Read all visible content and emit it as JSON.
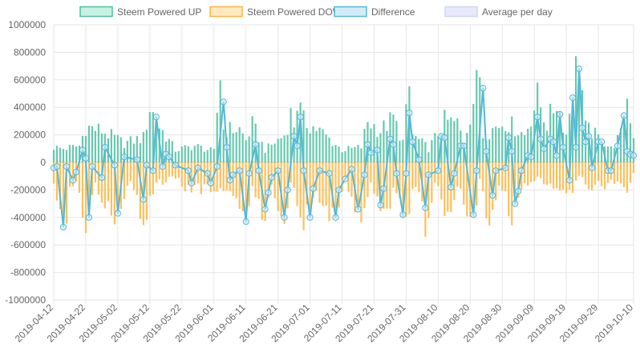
{
  "chart_data": {
    "type": "bar",
    "ylim": [
      -1000000,
      1000000
    ],
    "y_ticks": [
      "1000000",
      "800000",
      "600000",
      "400000",
      "200000",
      "0",
      "-200000",
      "-400000",
      "-600000",
      "-800000",
      "-1000000"
    ],
    "x_range": [
      "2019-04-12",
      "2019-10-10"
    ],
    "x_ticks": [
      "2019-04-12",
      "2019-04-22",
      "2019-05-02",
      "2019-05-12",
      "2019-05-22",
      "2019-06-01",
      "2019-06-11",
      "2019-06-21",
      "2019-07-01",
      "2019-07-11",
      "2019-07-21",
      "2019-07-31",
      "2019-08-10",
      "2019-08-20",
      "2019-08-30",
      "2019-09-09",
      "2019-09-19",
      "2019-09-29",
      "2019-10-10"
    ],
    "grid": true,
    "legend_position": "top",
    "series": [
      {
        "name": "Steem Powered UP",
        "type": "bar",
        "color": "#4bc0a0",
        "fill": "#c9f1e3"
      },
      {
        "name": "Steem Powered DOWN",
        "type": "bar",
        "color": "#ffb43c",
        "fill": "#ffe9c3"
      },
      {
        "name": "Difference",
        "type": "line",
        "color": "#52b8d9",
        "fill": "#d4ebf7"
      },
      {
        "name": "Average per day",
        "type": "line",
        "color": "#c8d0f0",
        "fill": "#e6e9fa"
      }
    ],
    "keypoints_up": [
      [
        "2019-04-12",
        110000
      ],
      [
        "2019-04-15",
        100000
      ],
      [
        "2019-04-20",
        120000
      ],
      [
        "2019-04-22",
        260000
      ],
      [
        "2019-04-27",
        230000
      ],
      [
        "2019-05-04",
        140000
      ],
      [
        "2019-05-10",
        180000
      ],
      [
        "2019-05-12",
        400000
      ],
      [
        "2019-05-15",
        260000
      ],
      [
        "2019-05-20",
        90000
      ],
      [
        "2019-05-26",
        120000
      ],
      [
        "2019-06-01",
        80000
      ],
      [
        "2019-06-03",
        650000
      ],
      [
        "2019-06-04",
        240000
      ],
      [
        "2019-06-09",
        240000
      ],
      [
        "2019-06-11",
        160000
      ],
      [
        "2019-06-13",
        270000
      ],
      [
        "2019-06-17",
        90000
      ],
      [
        "2019-06-23",
        200000
      ],
      [
        "2019-06-25",
        350000
      ],
      [
        "2019-06-26",
        280000
      ],
      [
        "2019-06-27",
        440000
      ],
      [
        "2019-06-29",
        300000
      ],
      [
        "2019-07-04",
        230000
      ],
      [
        "2019-07-11",
        90000
      ],
      [
        "2019-07-17",
        110000
      ],
      [
        "2019-07-19",
        300000
      ],
      [
        "2019-07-23",
        230000
      ],
      [
        "2019-07-27",
        320000
      ],
      [
        "2019-07-30",
        150000
      ],
      [
        "2019-08-01",
        530000
      ],
      [
        "2019-08-02",
        200000
      ],
      [
        "2019-08-07",
        100000
      ],
      [
        "2019-08-11",
        250000
      ],
      [
        "2019-08-12",
        300000
      ],
      [
        "2019-08-16",
        280000
      ],
      [
        "2019-08-18",
        160000
      ],
      [
        "2019-08-23",
        650000
      ],
      [
        "2019-08-24",
        200000
      ],
      [
        "2019-08-31",
        300000
      ],
      [
        "2019-09-06",
        200000
      ],
      [
        "2019-09-10",
        470000
      ],
      [
        "2019-09-13",
        280000
      ],
      [
        "2019-09-16",
        450000
      ],
      [
        "2019-09-19",
        200000
      ],
      [
        "2019-09-21",
        560000
      ],
      [
        "2019-09-23",
        780000
      ],
      [
        "2019-09-25",
        250000
      ],
      [
        "2019-09-28",
        200000
      ],
      [
        "2019-10-03",
        100000
      ],
      [
        "2019-10-06",
        200000
      ],
      [
        "2019-10-08",
        470000
      ],
      [
        "2019-10-10",
        200000
      ]
    ],
    "keypoints_down": [
      [
        "2019-04-12",
        -150000
      ],
      [
        "2019-04-16",
        -460000
      ],
      [
        "2019-04-17",
        -150000
      ],
      [
        "2019-04-20",
        -180000
      ],
      [
        "2019-04-22",
        -480000
      ],
      [
        "2019-04-25",
        -180000
      ],
      [
        "2019-05-02",
        -400000
      ],
      [
        "2019-05-06",
        -150000
      ],
      [
        "2019-05-10",
        -400000
      ],
      [
        "2019-05-14",
        -150000
      ],
      [
        "2019-05-20",
        -120000
      ],
      [
        "2019-05-23",
        -180000
      ],
      [
        "2019-05-26",
        -180000
      ],
      [
        "2019-06-01",
        -200000
      ],
      [
        "2019-06-05",
        -180000
      ],
      [
        "2019-06-11",
        -430000
      ],
      [
        "2019-06-13",
        -150000
      ],
      [
        "2019-06-16",
        -440000
      ],
      [
        "2019-06-19",
        -150000
      ],
      [
        "2019-06-23",
        -440000
      ],
      [
        "2019-06-25",
        -120000
      ],
      [
        "2019-06-29",
        -440000
      ],
      [
        "2019-07-03",
        -220000
      ],
      [
        "2019-07-09",
        -440000
      ],
      [
        "2019-07-12",
        -150000
      ],
      [
        "2019-07-17",
        -390000
      ],
      [
        "2019-07-20",
        -150000
      ],
      [
        "2019-07-25",
        -430000
      ],
      [
        "2019-07-27",
        -150000
      ],
      [
        "2019-07-31",
        -420000
      ],
      [
        "2019-08-03",
        -150000
      ],
      [
        "2019-08-06",
        -440000
      ],
      [
        "2019-08-09",
        -150000
      ],
      [
        "2019-08-13",
        -430000
      ],
      [
        "2019-08-16",
        -150000
      ],
      [
        "2019-08-21",
        -430000
      ],
      [
        "2019-08-23",
        -120000
      ],
      [
        "2019-08-26",
        -430000
      ],
      [
        "2019-08-29",
        -150000
      ],
      [
        "2019-09-02",
        -380000
      ],
      [
        "2019-09-06",
        -150000
      ],
      [
        "2019-09-10",
        -120000
      ],
      [
        "2019-09-15",
        -200000
      ],
      [
        "2019-09-20",
        -250000
      ],
      [
        "2019-09-23",
        -120000
      ],
      [
        "2019-09-28",
        -180000
      ],
      [
        "2019-10-03",
        -150000
      ],
      [
        "2019-10-08",
        -180000
      ],
      [
        "2019-10-10",
        -100000
      ]
    ],
    "keypoints_diff": [
      [
        "2019-04-12",
        -40000
      ],
      [
        "2019-04-13",
        -30000
      ],
      [
        "2019-04-15",
        -470000
      ],
      [
        "2019-04-16",
        -30000
      ],
      [
        "2019-04-18",
        -130000
      ],
      [
        "2019-04-19",
        -70000
      ],
      [
        "2019-04-21",
        90000
      ],
      [
        "2019-04-22",
        30000
      ],
      [
        "2019-04-23",
        -400000
      ],
      [
        "2019-04-24",
        -30000
      ],
      [
        "2019-04-27",
        -110000
      ],
      [
        "2019-04-28",
        110000
      ],
      [
        "2019-05-01",
        -20000
      ],
      [
        "2019-05-02",
        -370000
      ],
      [
        "2019-05-04",
        40000
      ],
      [
        "2019-05-08",
        20000
      ],
      [
        "2019-05-10",
        -270000
      ],
      [
        "2019-05-11",
        -20000
      ],
      [
        "2019-05-13",
        -60000
      ],
      [
        "2019-05-14",
        330000
      ],
      [
        "2019-05-16",
        -30000
      ],
      [
        "2019-05-17",
        60000
      ],
      [
        "2019-05-18",
        40000
      ],
      [
        "2019-05-20",
        -20000
      ],
      [
        "2019-05-24",
        -60000
      ],
      [
        "2019-05-25",
        -150000
      ],
      [
        "2019-05-27",
        -40000
      ],
      [
        "2019-05-30",
        -80000
      ],
      [
        "2019-05-31",
        -150000
      ],
      [
        "2019-06-02",
        -30000
      ],
      [
        "2019-06-04",
        440000
      ],
      [
        "2019-06-05",
        110000
      ],
      [
        "2019-06-06",
        -130000
      ],
      [
        "2019-06-07",
        -90000
      ],
      [
        "2019-06-09",
        -60000
      ],
      [
        "2019-06-11",
        -430000
      ],
      [
        "2019-06-12",
        -80000
      ],
      [
        "2019-06-14",
        130000
      ],
      [
        "2019-06-15",
        -60000
      ],
      [
        "2019-06-17",
        -340000
      ],
      [
        "2019-06-18",
        -220000
      ],
      [
        "2019-06-19",
        -110000
      ],
      [
        "2019-06-21",
        -60000
      ],
      [
        "2019-06-23",
        -400000
      ],
      [
        "2019-06-24",
        -200000
      ],
      [
        "2019-06-26",
        190000
      ],
      [
        "2019-06-27",
        120000
      ],
      [
        "2019-06-28",
        330000
      ],
      [
        "2019-06-29",
        -60000
      ],
      [
        "2019-07-01",
        -400000
      ],
      [
        "2019-07-02",
        -190000
      ],
      [
        "2019-07-04",
        -60000
      ],
      [
        "2019-07-07",
        -80000
      ],
      [
        "2019-07-09",
        -400000
      ],
      [
        "2019-07-10",
        -200000
      ],
      [
        "2019-07-12",
        -120000
      ],
      [
        "2019-07-14",
        -50000
      ],
      [
        "2019-07-16",
        -340000
      ],
      [
        "2019-07-18",
        -90000
      ],
      [
        "2019-07-19",
        130000
      ],
      [
        "2019-07-20",
        70000
      ],
      [
        "2019-07-22",
        90000
      ],
      [
        "2019-07-23",
        -310000
      ],
      [
        "2019-07-24",
        -190000
      ],
      [
        "2019-07-26",
        170000
      ],
      [
        "2019-07-27",
        130000
      ],
      [
        "2019-07-28",
        -80000
      ],
      [
        "2019-07-30",
        -380000
      ],
      [
        "2019-07-31",
        -80000
      ],
      [
        "2019-08-01",
        360000
      ],
      [
        "2019-08-02",
        150000
      ],
      [
        "2019-08-04",
        20000
      ],
      [
        "2019-08-06",
        -330000
      ],
      [
        "2019-08-07",
        -90000
      ],
      [
        "2019-08-10",
        -60000
      ],
      [
        "2019-08-11",
        190000
      ],
      [
        "2019-08-12",
        180000
      ],
      [
        "2019-08-14",
        -180000
      ],
      [
        "2019-08-15",
        -80000
      ],
      [
        "2019-08-17",
        120000
      ],
      [
        "2019-08-18",
        120000
      ],
      [
        "2019-08-21",
        -380000
      ],
      [
        "2019-08-22",
        -60000
      ],
      [
        "2019-08-24",
        540000
      ],
      [
        "2019-08-25",
        80000
      ],
      [
        "2019-08-27",
        -240000
      ],
      [
        "2019-08-28",
        -60000
      ],
      [
        "2019-08-31",
        -40000
      ],
      [
        "2019-09-01",
        180000
      ],
      [
        "2019-09-02",
        80000
      ],
      [
        "2019-09-03",
        -300000
      ],
      [
        "2019-09-04",
        -210000
      ],
      [
        "2019-09-05",
        -60000
      ],
      [
        "2019-09-07",
        50000
      ],
      [
        "2019-09-08",
        40000
      ],
      [
        "2019-09-10",
        330000
      ],
      [
        "2019-09-11",
        170000
      ],
      [
        "2019-09-12",
        100000
      ],
      [
        "2019-09-14",
        170000
      ],
      [
        "2019-09-15",
        150000
      ],
      [
        "2019-09-16",
        50000
      ],
      [
        "2019-09-17",
        350000
      ],
      [
        "2019-09-18",
        110000
      ],
      [
        "2019-09-20",
        -130000
      ],
      [
        "2019-09-21",
        470000
      ],
      [
        "2019-09-22",
        110000
      ],
      [
        "2019-09-23",
        680000
      ],
      [
        "2019-09-24",
        250000
      ],
      [
        "2019-09-25",
        150000
      ],
      [
        "2019-09-26",
        190000
      ],
      [
        "2019-09-27",
        -40000
      ],
      [
        "2019-09-29",
        150000
      ],
      [
        "2019-09-30",
        150000
      ],
      [
        "2019-10-02",
        -60000
      ],
      [
        "2019-10-03",
        -60000
      ],
      [
        "2019-10-05",
        120000
      ],
      [
        "2019-10-07",
        340000
      ],
      [
        "2019-10-08",
        80000
      ],
      [
        "2019-10-09",
        60000
      ],
      [
        "2019-10-10",
        50000
      ]
    ],
    "avg_per_day": 0
  },
  "legend": [
    {
      "label": "Steem Powered UP",
      "stroke": "#4bc0a0",
      "fill": "#c9f1e3"
    },
    {
      "label": "Steem Powered DOWN",
      "stroke": "#ffb43c",
      "fill": "#ffe9c3"
    },
    {
      "label": "Difference",
      "stroke": "#52b8d9",
      "fill": "#d4ebf7"
    },
    {
      "label": "Average per day",
      "stroke": "#d0d6f2",
      "fill": "#e6e9fa"
    }
  ]
}
